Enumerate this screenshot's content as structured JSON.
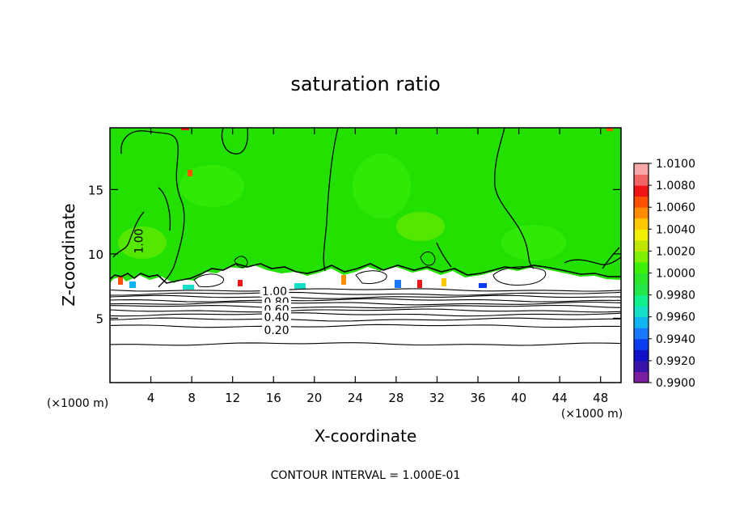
{
  "chart_data": {
    "type": "heatmap",
    "title": "saturation ratio",
    "xlabel": "X-coordinate",
    "ylabel": "Z-coordinate",
    "x_unit": "(×1000 m)",
    "y_unit": "(×1000 m)",
    "xlim": [
      0,
      50
    ],
    "ylim": [
      0,
      19.8
    ],
    "x_ticks": [
      4,
      8,
      12,
      16,
      20,
      24,
      28,
      32,
      36,
      40,
      44,
      48
    ],
    "y_ticks": [
      5,
      10,
      15
    ],
    "colorbar": {
      "min": 0.99,
      "max": 1.01,
      "labels": [
        "1.0100",
        "1.0080",
        "1.0060",
        "1.0040",
        "1.0020",
        "1.0000",
        "0.9980",
        "0.9960",
        "0.9940",
        "0.9920",
        "0.9900"
      ],
      "bands": [
        {
          "from": 0.99,
          "to": 0.991,
          "color": "#7a1fa0"
        },
        {
          "from": 0.991,
          "to": 0.992,
          "color": "#3a14a8"
        },
        {
          "from": 0.992,
          "to": 0.993,
          "color": "#1010c8"
        },
        {
          "from": 0.993,
          "to": 0.994,
          "color": "#0a3cf0"
        },
        {
          "from": 0.994,
          "to": 0.995,
          "color": "#1a78ff"
        },
        {
          "from": 0.995,
          "to": 0.996,
          "color": "#10b4f0"
        },
        {
          "from": 0.996,
          "to": 0.997,
          "color": "#14e0c8"
        },
        {
          "from": 0.997,
          "to": 0.998,
          "color": "#10f08c"
        },
        {
          "from": 0.998,
          "to": 0.999,
          "color": "#22e64a"
        },
        {
          "from": 0.999,
          "to": 1.0,
          "color": "#2ce62c"
        },
        {
          "from": 1.0,
          "to": 1.001,
          "color": "#3cf00a"
        },
        {
          "from": 1.001,
          "to": 1.002,
          "color": "#7ef000"
        },
        {
          "from": 1.002,
          "to": 1.003,
          "color": "#c0e600"
        },
        {
          "from": 1.003,
          "to": 1.004,
          "color": "#f0f000"
        },
        {
          "from": 1.004,
          "to": 1.005,
          "color": "#ffc800"
        },
        {
          "from": 1.005,
          "to": 1.006,
          "color": "#ff8c00"
        },
        {
          "from": 1.006,
          "to": 1.007,
          "color": "#ff5000"
        },
        {
          "from": 1.007,
          "to": 1.008,
          "color": "#f01414"
        },
        {
          "from": 1.008,
          "to": 1.009,
          "color": "#f06464"
        },
        {
          "from": 1.009,
          "to": 1.01,
          "color": "#f8a8a8"
        }
      ]
    },
    "field_color": "#22e000",
    "contour_interval": "1.000E-01",
    "footer": "CONTOUR INTERVAL = 1.000E-01",
    "contour_labels": [
      {
        "text": "1.00",
        "x": 2.8,
        "z": 11.0,
        "rotate": -90
      },
      {
        "text": "1.00",
        "x": 16.1,
        "z": 7.1
      },
      {
        "text": "0.80",
        "x": 16.3,
        "z": 6.3
      },
      {
        "text": "0.60",
        "x": 16.3,
        "z": 5.7
      },
      {
        "text": "0.40",
        "x": 16.3,
        "z": 5.1
      },
      {
        "text": "0.20",
        "x": 16.3,
        "z": 4.1
      }
    ],
    "lower_contour_levels_z": [
      7.2,
      6.9,
      6.65,
      6.4,
      6.15,
      5.9,
      5.6,
      5.3,
      4.9,
      4.4,
      3.0
    ]
  }
}
